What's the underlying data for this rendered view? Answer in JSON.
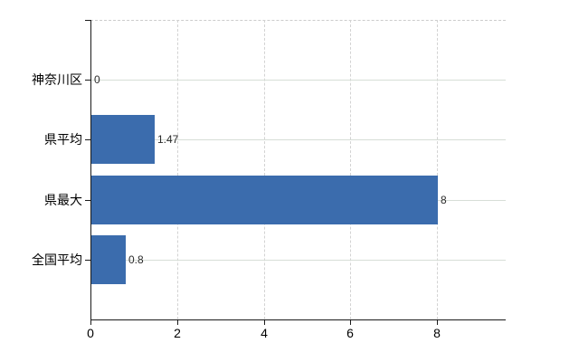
{
  "chart_data": {
    "type": "bar",
    "orientation": "horizontal",
    "title": "",
    "xlabel": "",
    "ylabel": "",
    "categories": [
      "神奈川区",
      "県平均",
      "県最大",
      "全国平均"
    ],
    "values": [
      0,
      1.47,
      8,
      0.8
    ],
    "value_labels": [
      "0",
      "1.47",
      "8",
      "0.8"
    ],
    "x_ticks": [
      0,
      2,
      4,
      6,
      8
    ],
    "x_tick_labels": [
      "0",
      "2",
      "4",
      "6",
      "8"
    ],
    "xlim": [
      0,
      9.58
    ],
    "grid": true,
    "legend": false,
    "bar_color": "#3b6cad",
    "axis_color": "#1a1a1a",
    "hgrid_color": "#d7ded7",
    "vgrid_color": "#d3d3d3"
  }
}
